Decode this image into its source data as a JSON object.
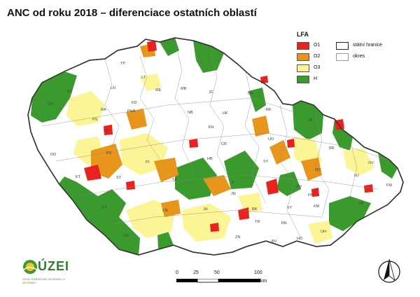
{
  "title": "ANC od roku 2018 – diferenciace ostatních oblastí",
  "colors": {
    "O1": "#e8231f",
    "O2": "#e8951c",
    "O3": "#fbf595",
    "H": "#3b9a2d",
    "background_district": "#ffffff",
    "border": "#333333"
  },
  "legend": {
    "title": "LFA",
    "items": [
      {
        "key": "O1",
        "label": "O1",
        "color": "#e8231f"
      },
      {
        "key": "O2",
        "label": "O2",
        "color": "#e8951c"
      },
      {
        "key": "O3",
        "label": "O3",
        "color": "#fbf595"
      },
      {
        "key": "H",
        "label": "H",
        "color": "#3b9a2d"
      }
    ],
    "boundaries": [
      {
        "label": "státní hranice"
      },
      {
        "label": "okres"
      }
    ]
  },
  "districts": [
    "TP",
    "LN",
    "LT",
    "ME",
    "MB",
    "JC",
    "NA",
    "ZL",
    "CH",
    "KV",
    "KO",
    "SO",
    "RA",
    "KD",
    "PHA",
    "NB",
    "HK",
    "RK",
    "PZ",
    "PS",
    "PU",
    "KH",
    "CR",
    "UO",
    "SU",
    "JE",
    "BR",
    "OC",
    "DO",
    "PI",
    "TA",
    "HB",
    "SY",
    "OV",
    "KT",
    "NJ",
    "FM",
    "ST",
    "JI",
    "PV",
    "VS",
    "BV",
    "KM",
    "PR",
    "CB",
    "JH",
    "BK",
    "ZN",
    "HO",
    "UH",
    "PT",
    "CK",
    "JN",
    "VY",
    "TR",
    "BN",
    "VP"
  ],
  "scalebar": {
    "ticks": [
      "0",
      "25",
      "50",
      "100"
    ],
    "unit": "km"
  },
  "logo": {
    "name": "ÚZEI",
    "subtitle": "ÚSTAV ZEMĚDĚLSKÉ EKONOMIKY A INFORMACÍ"
  },
  "north_arrow": "north-arrow-icon"
}
